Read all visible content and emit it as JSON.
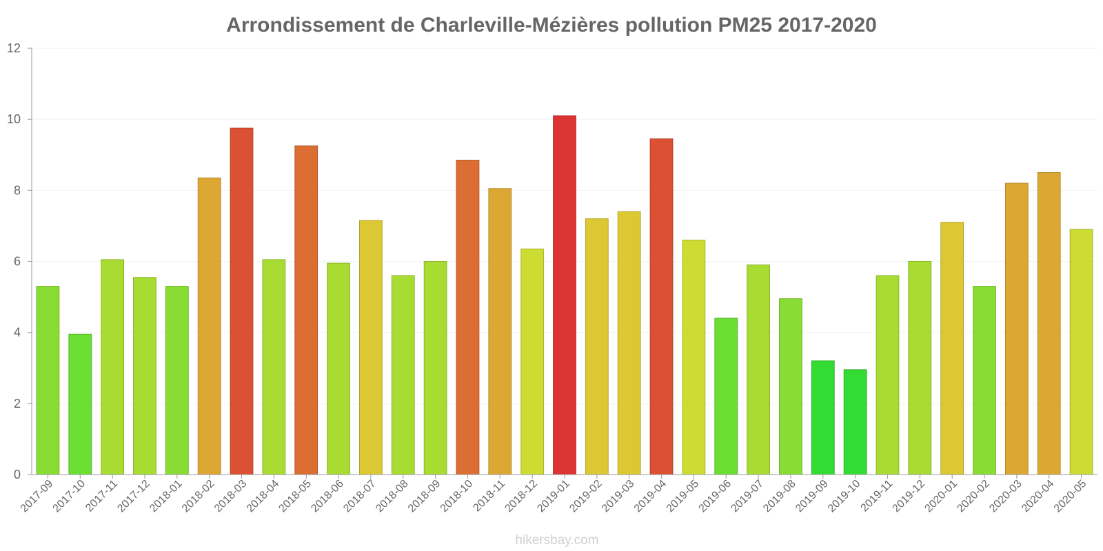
{
  "chart_data": {
    "type": "bar",
    "title": "Arrondissement de Charleville-Mézières pollution PM25 2017-2020",
    "xlabel": "",
    "ylabel": "",
    "ylim": [
      0,
      12
    ],
    "yticks": [
      0,
      2,
      4,
      6,
      8,
      10,
      12
    ],
    "grid": true,
    "categories": [
      "2017-09",
      "2017-10",
      "2017-11",
      "2017-12",
      "2018-01",
      "2018-02",
      "2018-03",
      "2018-04",
      "2018-05",
      "2018-06",
      "2018-07",
      "2018-08",
      "2018-09",
      "2018-10",
      "2018-11",
      "2018-12",
      "2019-01",
      "2019-02",
      "2019-03",
      "2019-04",
      "2019-05",
      "2019-06",
      "2019-07",
      "2019-08",
      "2019-09",
      "2019-10",
      "2019-11",
      "2019-12",
      "2020-01",
      "2020-02",
      "2020-03",
      "2020-04",
      "2020-05"
    ],
    "values": [
      5.3,
      3.95,
      6.05,
      5.55,
      5.3,
      8.35,
      9.75,
      6.05,
      9.25,
      5.95,
      7.15,
      5.6,
      6.0,
      8.85,
      8.05,
      6.35,
      10.1,
      7.2,
      7.4,
      9.45,
      6.6,
      4.4,
      5.9,
      4.95,
      3.2,
      2.95,
      5.6,
      6.0,
      7.1,
      5.3,
      8.2,
      8.5,
      6.9
    ],
    "colors": [
      "#89dc33",
      "#6ade33",
      "#a8dc33",
      "#a8dc33",
      "#89dc33",
      "#dca833",
      "#dc5033",
      "#a8dc33",
      "#dc6e33",
      "#a8dc33",
      "#dcc833",
      "#a8dc33",
      "#a8dc33",
      "#dc6e33",
      "#dca833",
      "#cddc33",
      "#dc3333",
      "#dcc833",
      "#dcc833",
      "#dc5033",
      "#cddc33",
      "#6ade33",
      "#a8dc33",
      "#89dc33",
      "#33dc33",
      "#33dc33",
      "#a8dc33",
      "#a8dc33",
      "#dcc833",
      "#89dc33",
      "#dca833",
      "#dca833",
      "#cddc33"
    ]
  },
  "watermark": "hikersbay.com"
}
